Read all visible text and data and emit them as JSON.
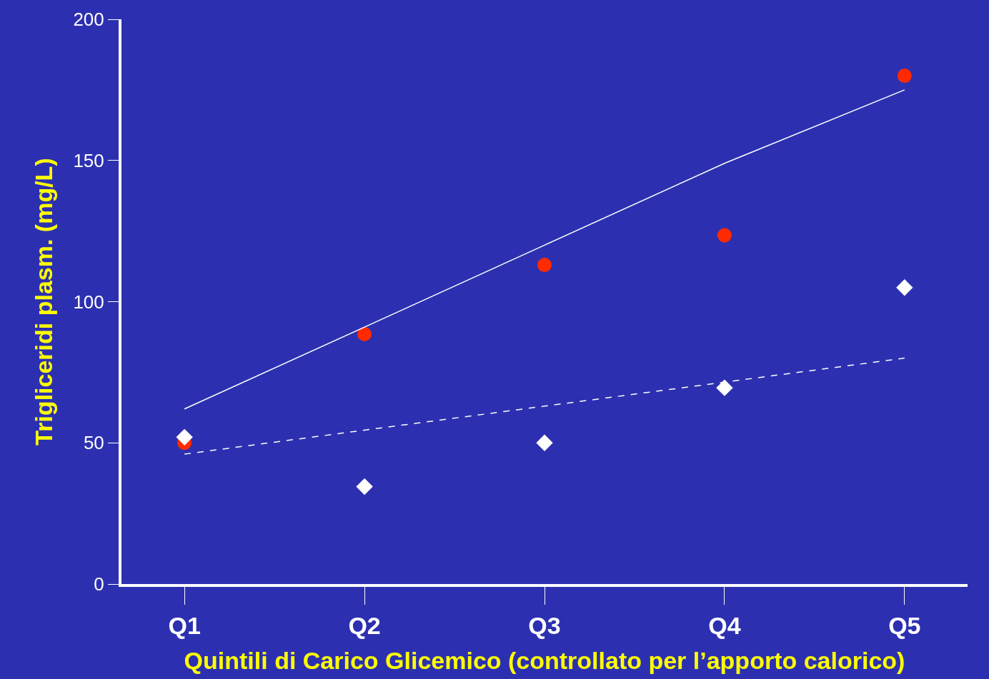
{
  "chart_data": {
    "type": "scatter",
    "xlabel": "Quintili di Carico Glicemico (controllato per l’apporto calorico)",
    "ylabel": "Trigliceridi plasm. (mg/L)",
    "categories": [
      "Q1",
      "Q2",
      "Q3",
      "Q4",
      "Q5"
    ],
    "ylim": [
      0,
      200
    ],
    "yticks": [
      0,
      50,
      100,
      150,
      200
    ],
    "grid": false,
    "series": [
      {
        "color": "#ff2a00",
        "marker": "circle",
        "values": [
          50,
          88.5,
          113,
          123.5,
          180
        ]
      },
      {
        "color": "#ffffff",
        "marker": "diamond",
        "values": [
          52,
          34.5,
          50,
          69.5,
          105
        ]
      },
      {
        "type": "line",
        "color": "#ffffff",
        "line_style": "solid",
        "marker": "none",
        "values": [
          62,
          91,
          120,
          149,
          175
        ]
      },
      {
        "type": "line",
        "color": "#ffffff",
        "line_style": "dashed",
        "marker": "none",
        "values": [
          46,
          54.5,
          63,
          71.5,
          80
        ]
      }
    ]
  }
}
